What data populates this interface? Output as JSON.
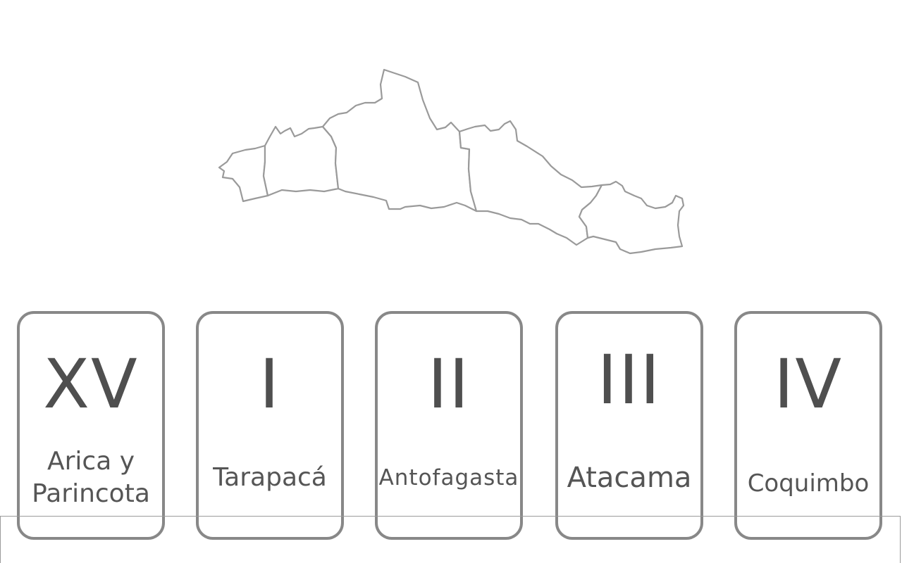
{
  "map": {
    "regions": [
      {
        "id": "XV",
        "name": "Arica y Parincota"
      },
      {
        "id": "I",
        "name": "Tarapacá"
      },
      {
        "id": "II",
        "name": "Antofagasta"
      },
      {
        "id": "III",
        "name": "Atacama"
      },
      {
        "id": "IV",
        "name": "Coquimbo"
      }
    ],
    "stroke_color": "#9a9a9a"
  },
  "cards": [
    {
      "numeral": "XV",
      "name_line1": "Arica y",
      "name_line2": "Parincota"
    },
    {
      "numeral": "I",
      "name_line1": "Tarapacá",
      "name_line2": ""
    },
    {
      "numeral": "II",
      "name_line1": "Antofagasta",
      "name_line2": ""
    },
    {
      "numeral": "III",
      "name_line1": "Atacama",
      "name_line2": ""
    },
    {
      "numeral": "IV",
      "name_line1": "Coquimbo",
      "name_line2": ""
    }
  ],
  "colors": {
    "card_border": "#888888",
    "text": "#555555"
  }
}
